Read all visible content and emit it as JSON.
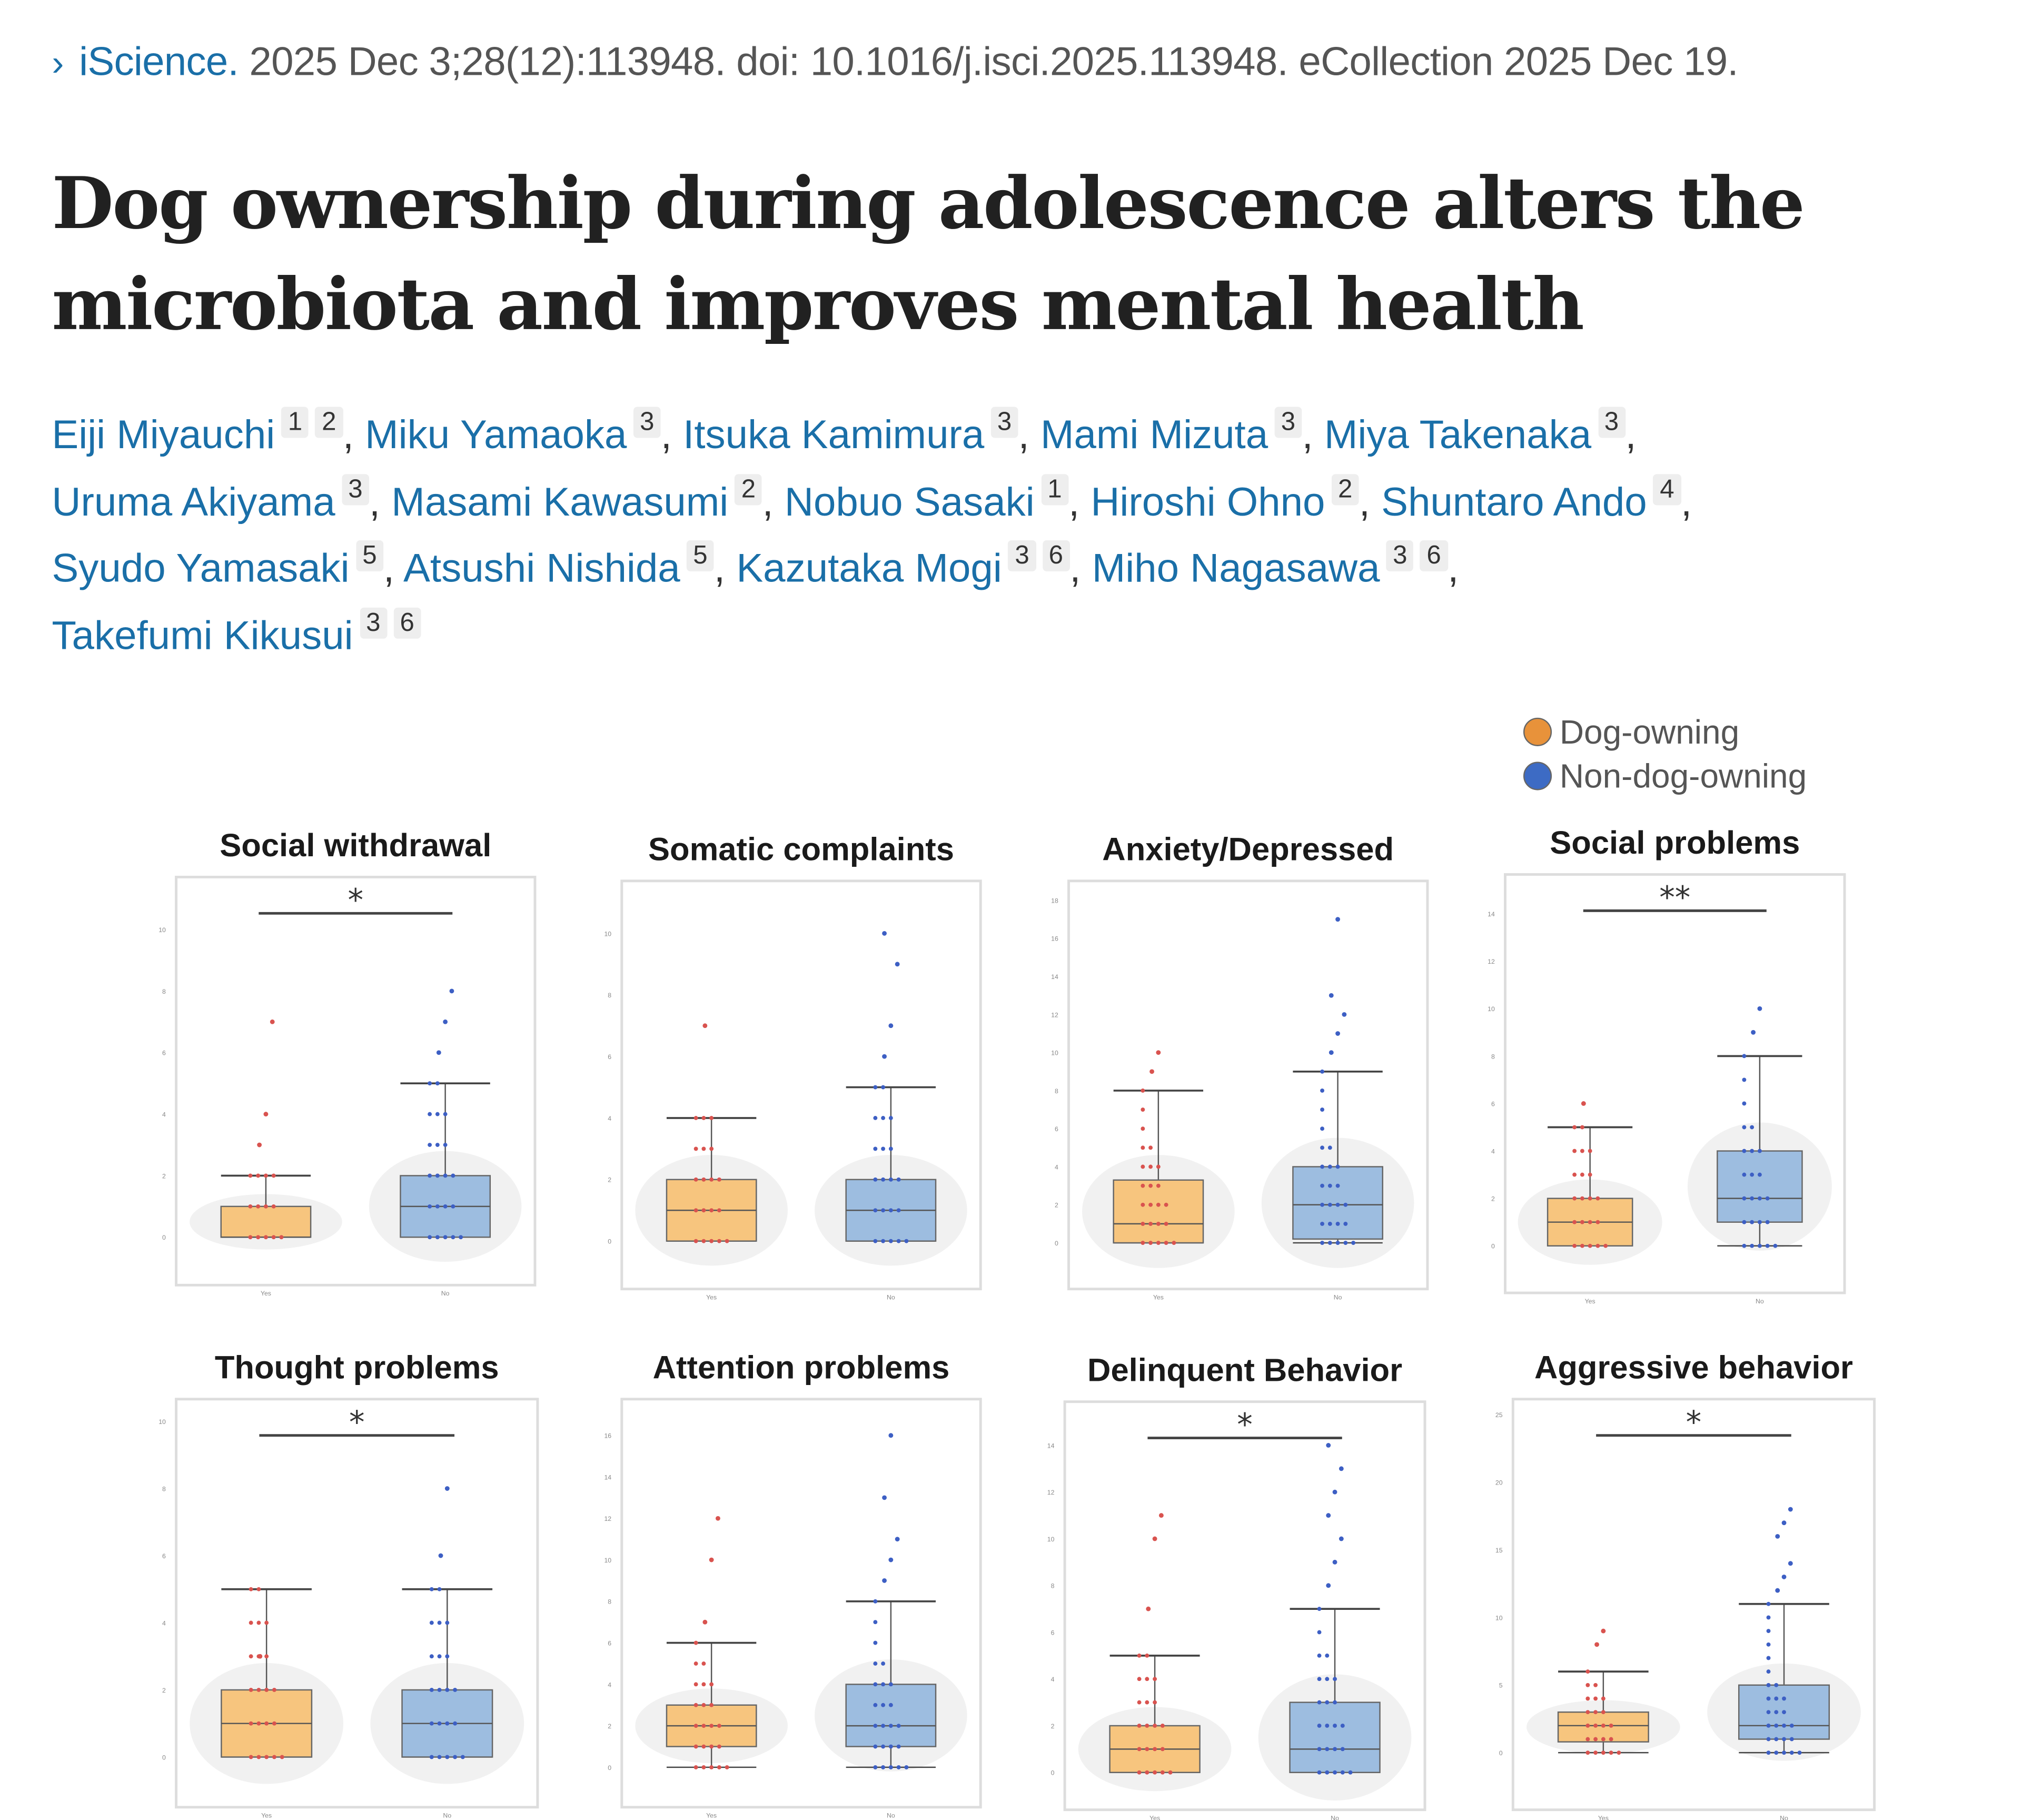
{
  "citation": {
    "journal": "iScience.",
    "details": "2025 Dec 3;28(12):113948. doi: 10.1016/j.isci.2025.113948. eCollection 2025 Dec 19."
  },
  "title": "Dog ownership during adolescence alters the microbiota and improves mental health",
  "authors": [
    {
      "name": "Eiji Miyauchi",
      "affiliations": [
        "1",
        "2"
      ]
    },
    {
      "name": "Miku Yamaoka",
      "affiliations": [
        "3"
      ]
    },
    {
      "name": "Itsuka Kamimura",
      "affiliations": [
        "3"
      ]
    },
    {
      "name": "Mami Mizuta",
      "affiliations": [
        "3"
      ]
    },
    {
      "name": "Miya Takenaka",
      "affiliations": [
        "3"
      ]
    },
    {
      "name": "Uruma Akiyama",
      "affiliations": [
        "3"
      ]
    },
    {
      "name": "Masami Kawasumi",
      "affiliations": [
        "2"
      ]
    },
    {
      "name": "Nobuo Sasaki",
      "affiliations": [
        "1"
      ]
    },
    {
      "name": "Hiroshi Ohno",
      "affiliations": [
        "2"
      ]
    },
    {
      "name": "Shuntaro Ando",
      "affiliations": [
        "4"
      ]
    },
    {
      "name": "Syudo Yamasaki",
      "affiliations": [
        "5"
      ]
    },
    {
      "name": "Atsushi Nishida",
      "affiliations": [
        "5"
      ]
    },
    {
      "name": "Kazutaka Mogi",
      "affiliations": [
        "3",
        "6"
      ]
    },
    {
      "name": "Miho Nagasawa",
      "affiliations": [
        "3",
        "6"
      ]
    },
    {
      "name": "Takefumi Kikusui",
      "affiliations": [
        "3",
        "6"
      ]
    }
  ],
  "legend": [
    {
      "label": "Dog-owning",
      "color": "#e8923a"
    },
    {
      "label": "Non-dog-owning",
      "color": "#3d6bc4"
    }
  ],
  "colors": {
    "dog_box": "#f7c57e",
    "non_dog_box": "#9dbde0",
    "dog_points": "#d9534f",
    "non_dog_points": "#3d5fc4"
  },
  "chart_data": [
    {
      "type": "box",
      "title": "Social withdrawal",
      "categories": [
        "Yes",
        "No"
      ],
      "yticks": [
        0,
        2,
        4,
        6,
        8,
        10
      ],
      "ylim": [
        -0.8,
        11.2
      ],
      "significance": "*",
      "series": [
        {
          "name": "Dog-owning",
          "box": [
            0,
            0,
            0,
            1,
            2
          ],
          "outliers": [
            3,
            4,
            7
          ]
        },
        {
          "name": "Non-dog-owning",
          "box": [
            0,
            0,
            1,
            2,
            5
          ],
          "outliers": [
            6,
            7,
            8
          ]
        }
      ]
    },
    {
      "type": "box",
      "title": "Somatic complaints",
      "categories": [
        "Yes",
        "No"
      ],
      "yticks": [
        0,
        2,
        4,
        6,
        8,
        10
      ],
      "ylim": [
        -0.8,
        11.2
      ],
      "significance": "",
      "series": [
        {
          "name": "Dog-owning",
          "box": [
            0,
            0,
            1,
            2,
            4
          ],
          "outliers": [
            7
          ]
        },
        {
          "name": "Non-dog-owning",
          "box": [
            0,
            0,
            1,
            2,
            5
          ],
          "outliers": [
            6,
            7,
            9,
            10
          ]
        }
      ]
    },
    {
      "type": "box",
      "title": "Anxiety/Depressed",
      "categories": [
        "Yes",
        "No"
      ],
      "yticks": [
        0,
        2,
        4,
        6,
        8,
        10,
        12,
        14,
        16,
        18
      ],
      "ylim": [
        -1.2,
        18.2
      ],
      "significance": "",
      "series": [
        {
          "name": "Dog-owning",
          "box": [
            0,
            0,
            1,
            3.3,
            8
          ],
          "outliers": [
            9,
            10
          ]
        },
        {
          "name": "Non-dog-owning",
          "box": [
            0,
            0.2,
            2,
            4,
            9
          ],
          "outliers": [
            10,
            11,
            12,
            13,
            17
          ]
        }
      ]
    },
    {
      "type": "box",
      "title": "Social problems",
      "categories": [
        "Yes",
        "No"
      ],
      "yticks": [
        0,
        2,
        4,
        6,
        8,
        10,
        12,
        14
      ],
      "ylim": [
        -1,
        15
      ],
      "significance": "**",
      "series": [
        {
          "name": "Dog-owning",
          "box": [
            0,
            0,
            1,
            2,
            5
          ],
          "outliers": [
            6
          ]
        },
        {
          "name": "Non-dog-owning",
          "box": [
            0,
            1,
            2,
            4,
            8
          ],
          "outliers": [
            9,
            10
          ]
        }
      ]
    },
    {
      "type": "box",
      "title": "Thought problems",
      "categories": [
        "Yes",
        "No"
      ],
      "yticks": [
        0,
        2,
        4,
        6,
        8,
        10
      ],
      "ylim": [
        -0.8,
        10.2
      ],
      "significance": "*",
      "series": [
        {
          "name": "Dog-owning",
          "box": [
            0,
            0,
            1,
            2,
            5
          ],
          "outliers": [
            3
          ]
        },
        {
          "name": "Non-dog-owning",
          "box": [
            0,
            0,
            1,
            2,
            5
          ],
          "outliers": [
            6,
            8
          ]
        }
      ]
    },
    {
      "type": "box",
      "title": "Attention problems",
      "categories": [
        "Yes",
        "No"
      ],
      "yticks": [
        0,
        2,
        4,
        6,
        8,
        10,
        12,
        14,
        16
      ],
      "ylim": [
        -0.8,
        17
      ],
      "significance": "",
      "series": [
        {
          "name": "Dog-owning",
          "box": [
            0,
            1,
            2,
            3,
            6
          ],
          "outliers": [
            7,
            10,
            12
          ]
        },
        {
          "name": "Non-dog-owning",
          "box": [
            0,
            1,
            2,
            4,
            8
          ],
          "outliers": [
            9,
            10,
            11,
            13,
            16
          ]
        }
      ]
    },
    {
      "type": "box",
      "title": "Delinquent Behavior",
      "categories": [
        "Yes",
        "No"
      ],
      "yticks": [
        0,
        2,
        4,
        6,
        8,
        10,
        12,
        14
      ],
      "ylim": [
        -0.6,
        15.2
      ],
      "significance": "*",
      "series": [
        {
          "name": "Dog-owning",
          "box": [
            0,
            0,
            1,
            2,
            5
          ],
          "outliers": [
            7,
            10,
            11
          ]
        },
        {
          "name": "Non-dog-owning",
          "box": [
            0,
            0,
            1,
            3,
            7
          ],
          "outliers": [
            8,
            9,
            10,
            11,
            12,
            13,
            14
          ]
        }
      ]
    },
    {
      "type": "box",
      "title": "Aggressive behavior",
      "categories": [
        "Yes",
        "No"
      ],
      "yticks": [
        0,
        5,
        10,
        15,
        20,
        25
      ],
      "ylim": [
        -2.5,
        25
      ],
      "significance": "*",
      "series": [
        {
          "name": "Dog-owning",
          "box": [
            0,
            0.8,
            2,
            3,
            6
          ],
          "outliers": [
            8,
            9
          ]
        },
        {
          "name": "Non-dog-owning",
          "box": [
            0,
            1,
            2,
            5,
            11
          ],
          "outliers": [
            12,
            13,
            14,
            16,
            17,
            18
          ]
        }
      ]
    }
  ]
}
